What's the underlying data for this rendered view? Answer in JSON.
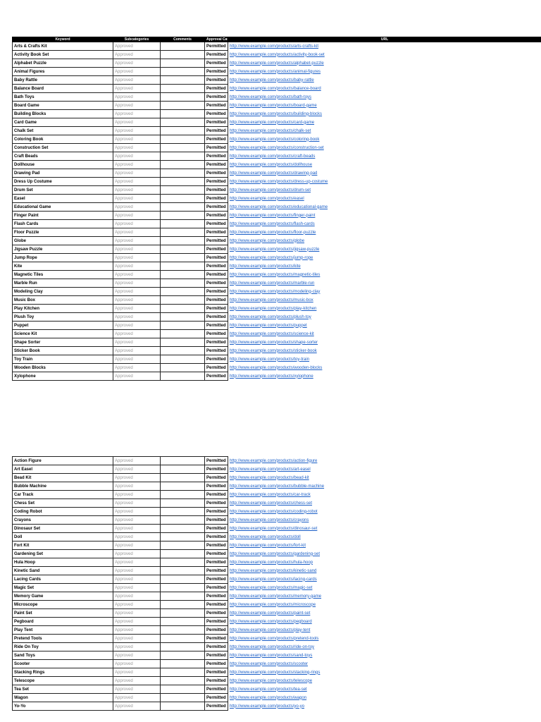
{
  "tables": [
    {
      "header": [
        "Keyword",
        "Subcategories",
        "Comments",
        "Approval Category",
        "URL"
      ],
      "rows": [
        [
          "Arts & Crafts Kit",
          "Approved",
          "",
          "Permitted",
          "http://www.example.com/products/arts-crafts-kit"
        ],
        [
          "Activity Book Set",
          "Approved",
          "",
          "Permitted",
          "http://www.example.com/products/activity-book-set"
        ],
        [
          "Alphabet Puzzle",
          "Approved",
          "",
          "Permitted",
          "http://www.example.com/products/alphabet-puzzle"
        ],
        [
          "Animal Figures",
          "Approved",
          "",
          "Permitted",
          "http://www.example.com/products/animal-figures"
        ],
        [
          "Baby Rattle",
          "Approved",
          "",
          "Permitted",
          "http://www.example.com/products/baby-rattle"
        ],
        [
          "Balance Board",
          "Approved",
          "",
          "Permitted",
          "http://www.example.com/products/balance-board"
        ],
        [
          "Bath Toys",
          "Approved",
          "",
          "Permitted",
          "http://www.example.com/products/bath-toys"
        ],
        [
          "Board Game",
          "Approved",
          "",
          "Permitted",
          "http://www.example.com/products/board-game"
        ],
        [
          "Building Blocks",
          "Approved",
          "",
          "Permitted",
          "http://www.example.com/products/building-blocks"
        ],
        [
          "Card Game",
          "Approved",
          "",
          "Permitted",
          "http://www.example.com/products/card-game"
        ],
        [
          "Chalk Set",
          "Approved",
          "",
          "Permitted",
          "http://www.example.com/products/chalk-set"
        ],
        [
          "Coloring Book",
          "Approved",
          "",
          "Permitted",
          "http://www.example.com/products/coloring-book"
        ],
        [
          "Construction Set",
          "Approved",
          "",
          "Permitted",
          "http://www.example.com/products/construction-set"
        ],
        [
          "Craft Beads",
          "Approved",
          "",
          "Permitted",
          "http://www.example.com/products/craft-beads"
        ],
        [
          "Dollhouse",
          "Approved",
          "",
          "Permitted",
          "http://www.example.com/products/dollhouse"
        ],
        [
          "Drawing Pad",
          "Approved",
          "",
          "Permitted",
          "http://www.example.com/products/drawing-pad"
        ],
        [
          "Dress Up Costume",
          "Approved",
          "",
          "Permitted",
          "http://www.example.com/products/dress-up-costume"
        ],
        [
          "Drum Set",
          "Approved",
          "",
          "Permitted",
          "http://www.example.com/products/drum-set"
        ],
        [
          "Easel",
          "Approved",
          "",
          "Permitted",
          "http://www.example.com/products/easel"
        ],
        [
          "Educational Game",
          "Approved",
          "",
          "Permitted",
          "http://www.example.com/products/educational-game"
        ],
        [
          "Finger Paint",
          "Approved",
          "",
          "Permitted",
          "http://www.example.com/products/finger-paint"
        ],
        [
          "Flash Cards",
          "Approved",
          "",
          "Permitted",
          "http://www.example.com/products/flash-cards"
        ],
        [
          "Floor Puzzle",
          "Approved",
          "",
          "Permitted",
          "http://www.example.com/products/floor-puzzle"
        ],
        [
          "Globe",
          "Approved",
          "",
          "Permitted",
          "http://www.example.com/products/globe"
        ],
        [
          "Jigsaw Puzzle",
          "Approved",
          "",
          "Permitted",
          "http://www.example.com/products/jigsaw-puzzle"
        ],
        [
          "Jump Rope",
          "Approved",
          "",
          "Permitted",
          "http://www.example.com/products/jump-rope"
        ],
        [
          "Kite",
          "Approved",
          "",
          "Permitted",
          "http://www.example.com/products/kite"
        ],
        [
          "Magnetic Tiles",
          "Approved",
          "",
          "Permitted",
          "http://www.example.com/products/magnetic-tiles"
        ],
        [
          "Marble Run",
          "Approved",
          "",
          "Permitted",
          "http://www.example.com/products/marble-run"
        ],
        [
          "Modeling Clay",
          "Approved",
          "",
          "Permitted",
          "http://www.example.com/products/modeling-clay"
        ],
        [
          "Music Box",
          "Approved",
          "",
          "Permitted",
          "http://www.example.com/products/music-box"
        ],
        [
          "Play Kitchen",
          "Approved",
          "",
          "Permitted",
          "http://www.example.com/products/play-kitchen"
        ],
        [
          "Plush Toy",
          "Approved",
          "",
          "Permitted",
          "http://www.example.com/products/plush-toy"
        ],
        [
          "Puppet",
          "Approved",
          "",
          "Permitted",
          "http://www.example.com/products/puppet"
        ],
        [
          "Science Kit",
          "Approved",
          "",
          "Permitted",
          "http://www.example.com/products/science-kit"
        ],
        [
          "Shape Sorter",
          "Approved",
          "",
          "Permitted",
          "http://www.example.com/products/shape-sorter"
        ],
        [
          "Sticker Book",
          "Approved",
          "",
          "Permitted",
          "http://www.example.com/products/sticker-book"
        ],
        [
          "Toy Train",
          "Approved",
          "",
          "Permitted",
          "http://www.example.com/products/toy-train"
        ],
        [
          "Wooden Blocks",
          "Approved",
          "",
          "Permitted",
          "http://www.example.com/products/wooden-blocks"
        ],
        [
          "Xylophone",
          "Approved",
          "",
          "Permitted",
          "http://www.example.com/products/xylophone"
        ]
      ]
    },
    {
      "header": null,
      "rows": [
        [
          "Action Figure",
          "Approved",
          "",
          "Permitted",
          "http://www.example.com/products/action-figure"
        ],
        [
          "Art Easel",
          "Approved",
          "",
          "Permitted",
          "http://www.example.com/products/art-easel"
        ],
        [
          "Bead Kit",
          "Approved",
          "",
          "Permitted",
          "http://www.example.com/products/bead-kit"
        ],
        [
          "Bubble Machine",
          "Approved",
          "",
          "Permitted",
          "http://www.example.com/products/bubble-machine"
        ],
        [
          "Car Track",
          "Approved",
          "",
          "Permitted",
          "http://www.example.com/products/car-track"
        ],
        [
          "Chess Set",
          "Approved",
          "",
          "Permitted",
          "http://www.example.com/products/chess-set"
        ],
        [
          "Coding Robot",
          "Approved",
          "",
          "Permitted",
          "http://www.example.com/products/coding-robot"
        ],
        [
          "Crayons",
          "Approved",
          "",
          "Permitted",
          "http://www.example.com/products/crayons"
        ],
        [
          "Dinosaur Set",
          "Approved",
          "",
          "Permitted",
          "http://www.example.com/products/dinosaur-set"
        ],
        [
          "Doll",
          "Approved",
          "",
          "Permitted",
          "http://www.example.com/products/doll"
        ],
        [
          "Fort Kit",
          "Approved",
          "",
          "Permitted",
          "http://www.example.com/products/fort-kit"
        ],
        [
          "Gardening Set",
          "Approved",
          "",
          "Permitted",
          "http://www.example.com/products/gardening-set"
        ],
        [
          "Hula Hoop",
          "Approved",
          "",
          "Permitted",
          "http://www.example.com/products/hula-hoop"
        ],
        [
          "Kinetic Sand",
          "Approved",
          "",
          "Permitted",
          "http://www.example.com/products/kinetic-sand"
        ],
        [
          "Lacing Cards",
          "Approved",
          "",
          "Permitted",
          "http://www.example.com/products/lacing-cards"
        ],
        [
          "Magic Set",
          "Approved",
          "",
          "Permitted",
          "http://www.example.com/products/magic-set"
        ],
        [
          "Memory Game",
          "Approved",
          "",
          "Permitted",
          "http://www.example.com/products/memory-game"
        ],
        [
          "Microscope",
          "Approved",
          "",
          "Permitted",
          "http://www.example.com/products/microscope"
        ],
        [
          "Paint Set",
          "Approved",
          "",
          "Permitted",
          "http://www.example.com/products/paint-set"
        ],
        [
          "Pegboard",
          "Approved",
          "",
          "Permitted",
          "http://www.example.com/products/pegboard"
        ],
        [
          "Play Tent",
          "Approved",
          "",
          "Permitted",
          "http://www.example.com/products/play-tent"
        ],
        [
          "Pretend Tools",
          "Approved",
          "",
          "Permitted",
          "http://www.example.com/products/pretend-tools"
        ],
        [
          "Ride On Toy",
          "Approved",
          "",
          "Permitted",
          "http://www.example.com/products/ride-on-toy"
        ],
        [
          "Sand Toys",
          "Approved",
          "",
          "Permitted",
          "http://www.example.com/products/sand-toys"
        ],
        [
          "Scooter",
          "Approved",
          "",
          "Permitted",
          "http://www.example.com/products/scooter"
        ],
        [
          "Stacking Rings",
          "Approved",
          "",
          "Permitted",
          "http://www.example.com/products/stacking-rings"
        ],
        [
          "Telescope",
          "Approved",
          "",
          "Permitted",
          "http://www.example.com/products/telescope"
        ],
        [
          "Tea Set",
          "Approved",
          "",
          "Permitted",
          "http://www.example.com/products/tea-set"
        ],
        [
          "Wagon",
          "Approved",
          "",
          "Permitted",
          "http://www.example.com/products/wagon"
        ],
        [
          "Yo-Yo",
          "Approved",
          "",
          "Permitted",
          "http://www.example.com/products/yo-yo"
        ]
      ]
    }
  ]
}
